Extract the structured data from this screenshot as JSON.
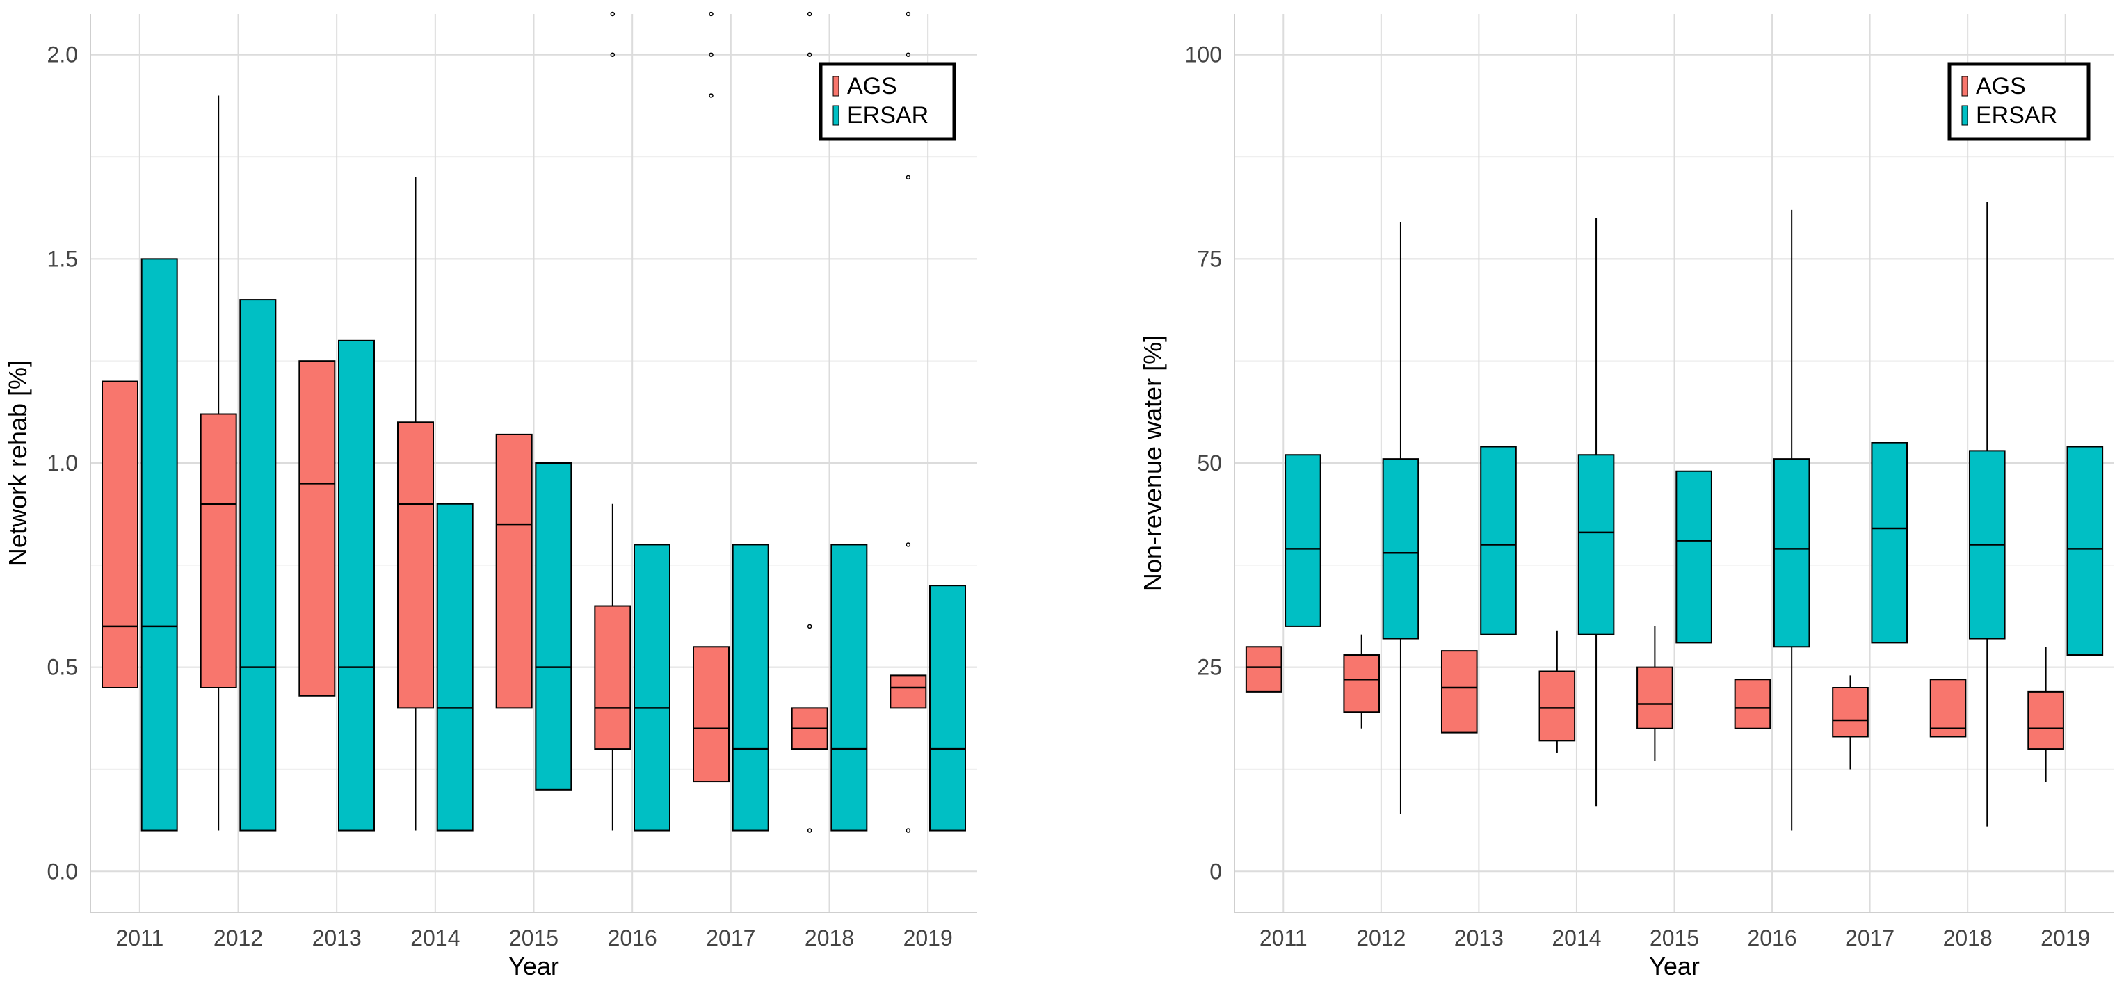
{
  "colors": {
    "ags": "#F8766D",
    "ersar": "#00BFC4",
    "grid": "#dcdcdc",
    "axis_text": "#444444"
  },
  "chart_data": [
    {
      "type": "boxplot",
      "xlabel": "Year",
      "ylabel": "Network rehab [%]",
      "ylim": [
        -0.1,
        2.1
      ],
      "yticks": [
        "0.0",
        "0.5",
        "1.0",
        "1.5",
        "2.0"
      ],
      "yticks_values": [
        0,
        0.5,
        1.0,
        1.5,
        2.0
      ],
      "categories": [
        "2011",
        "2012",
        "2013",
        "2014",
        "2015",
        "2016",
        "2017",
        "2018",
        "2019"
      ],
      "legend": {
        "position": "top-right",
        "entries": [
          "AGS",
          "ERSAR"
        ]
      },
      "series": [
        {
          "name": "AGS",
          "color": "#F8766D",
          "boxes": [
            {
              "min": 0.45,
              "q1": 0.45,
              "median": 0.6,
              "q3": 1.2,
              "max": 1.2,
              "outliers": []
            },
            {
              "min": 0.1,
              "q1": 0.45,
              "median": 0.9,
              "q3": 1.12,
              "max": 1.9,
              "outliers": []
            },
            {
              "min": 0.43,
              "q1": 0.43,
              "median": 0.95,
              "q3": 1.25,
              "max": 1.25,
              "outliers": []
            },
            {
              "min": 0.1,
              "q1": 0.4,
              "median": 0.9,
              "q3": 1.1,
              "max": 1.7,
              "outliers": []
            },
            {
              "min": 0.4,
              "q1": 0.4,
              "median": 0.85,
              "q3": 1.07,
              "max": 1.07,
              "outliers": []
            },
            {
              "min": 0.1,
              "q1": 0.3,
              "median": 0.4,
              "q3": 0.65,
              "max": 0.9,
              "outliers": [
                2.1,
                2.0
              ]
            },
            {
              "min": 0.22,
              "q1": 0.22,
              "median": 0.35,
              "q3": 0.55,
              "max": 0.55,
              "outliers": [
                2.1,
                2.0,
                1.9
              ]
            },
            {
              "min": 0.3,
              "q1": 0.3,
              "median": 0.35,
              "q3": 0.4,
              "max": 0.4,
              "outliers": [
                2.1,
                2.0,
                0.6,
                0.1
              ]
            },
            {
              "min": 0.4,
              "q1": 0.4,
              "median": 0.45,
              "q3": 0.48,
              "max": 0.48,
              "outliers": [
                2.1,
                2.0,
                1.7,
                0.8,
                0.1
              ]
            }
          ]
        },
        {
          "name": "ERSAR",
          "color": "#00BFC4",
          "boxes": [
            {
              "min": 0.1,
              "q1": 0.1,
              "median": 0.6,
              "q3": 1.5,
              "max": 1.5,
              "outliers": []
            },
            {
              "min": 0.1,
              "q1": 0.1,
              "median": 0.5,
              "q3": 1.4,
              "max": 1.4,
              "outliers": []
            },
            {
              "min": 0.1,
              "q1": 0.1,
              "median": 0.5,
              "q3": 1.3,
              "max": 1.3,
              "outliers": []
            },
            {
              "min": 0.1,
              "q1": 0.1,
              "median": 0.4,
              "q3": 0.9,
              "max": 0.9,
              "outliers": []
            },
            {
              "min": 0.2,
              "q1": 0.2,
              "median": 0.5,
              "q3": 1.0,
              "max": 1.0,
              "outliers": []
            },
            {
              "min": 0.1,
              "q1": 0.1,
              "median": 0.4,
              "q3": 0.8,
              "max": 0.8,
              "outliers": []
            },
            {
              "min": 0.1,
              "q1": 0.1,
              "median": 0.3,
              "q3": 0.8,
              "max": 0.8,
              "outliers": []
            },
            {
              "min": 0.1,
              "q1": 0.1,
              "median": 0.3,
              "q3": 0.8,
              "max": 0.8,
              "outliers": []
            },
            {
              "min": 0.1,
              "q1": 0.1,
              "median": 0.3,
              "q3": 0.7,
              "max": 0.7,
              "outliers": []
            }
          ]
        }
      ]
    },
    {
      "type": "boxplot",
      "xlabel": "Year",
      "ylabel": "Non-revenue water [%]",
      "ylim": [
        -5,
        105
      ],
      "yticks": [
        "0",
        "25",
        "50",
        "75",
        "100"
      ],
      "yticks_values": [
        0,
        25,
        50,
        75,
        100
      ],
      "categories": [
        "2011",
        "2012",
        "2013",
        "2014",
        "2015",
        "2016",
        "2017",
        "2018",
        "2019"
      ],
      "legend": {
        "position": "top-right",
        "entries": [
          "AGS",
          "ERSAR"
        ]
      },
      "series": [
        {
          "name": "AGS",
          "color": "#F8766D",
          "boxes": [
            {
              "min": 22,
              "q1": 22,
              "median": 25,
              "q3": 27.5,
              "max": 27.5,
              "outliers": []
            },
            {
              "min": 17.5,
              "q1": 19.5,
              "median": 23.5,
              "q3": 26.5,
              "max": 29,
              "outliers": []
            },
            {
              "min": 17,
              "q1": 17,
              "median": 22.5,
              "q3": 27,
              "max": 27,
              "outliers": []
            },
            {
              "min": 14.5,
              "q1": 16,
              "median": 20,
              "q3": 24.5,
              "max": 29.5,
              "outliers": []
            },
            {
              "min": 13.5,
              "q1": 17.5,
              "median": 20.5,
              "q3": 25,
              "max": 30,
              "outliers": []
            },
            {
              "min": 17.5,
              "q1": 17.5,
              "median": 20,
              "q3": 23.5,
              "max": 23.5,
              "outliers": []
            },
            {
              "min": 12.5,
              "q1": 16.5,
              "median": 18.5,
              "q3": 22.5,
              "max": 24,
              "outliers": []
            },
            {
              "min": 16.5,
              "q1": 16.5,
              "median": 17.5,
              "q3": 23.5,
              "max": 23.5,
              "outliers": []
            },
            {
              "min": 11,
              "q1": 15,
              "median": 17.5,
              "q3": 22,
              "max": 27.5,
              "outliers": []
            }
          ]
        },
        {
          "name": "ERSAR",
          "color": "#00BFC4",
          "boxes": [
            {
              "min": 30,
              "q1": 30,
              "median": 39.5,
              "q3": 51,
              "max": 51,
              "outliers": []
            },
            {
              "min": 7,
              "q1": 28.5,
              "median": 39,
              "q3": 50.5,
              "max": 79.5,
              "outliers": []
            },
            {
              "min": 29,
              "q1": 29,
              "median": 40,
              "q3": 52,
              "max": 52,
              "outliers": []
            },
            {
              "min": 8,
              "q1": 29,
              "median": 41.5,
              "q3": 51,
              "max": 80,
              "outliers": []
            },
            {
              "min": 28,
              "q1": 28,
              "median": 40.5,
              "q3": 49,
              "max": 49,
              "outliers": []
            },
            {
              "min": 5,
              "q1": 27.5,
              "median": 39.5,
              "q3": 50.5,
              "max": 81,
              "outliers": []
            },
            {
              "min": 28,
              "q1": 28,
              "median": 42,
              "q3": 52.5,
              "max": 52.5,
              "outliers": []
            },
            {
              "min": 5.5,
              "q1": 28.5,
              "median": 40,
              "q3": 51.5,
              "max": 82,
              "outliers": []
            },
            {
              "min": 26.5,
              "q1": 26.5,
              "median": 39.5,
              "q3": 52,
              "max": 52,
              "outliers": []
            }
          ]
        }
      ]
    }
  ]
}
